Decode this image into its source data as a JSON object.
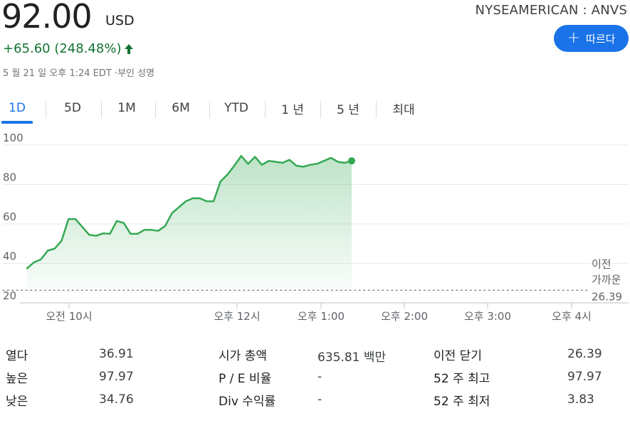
{
  "quote": {
    "price": "92.00",
    "currency": "USD",
    "exchange_ticker": "NYSEAMERICAN : ANVS",
    "change": "+65.60 (248.48%)",
    "timestamp": "5 월 21 일 오후 1:24 EDT ·부인 성명",
    "follow_label": "따르다"
  },
  "tabs": [
    {
      "label": "1D",
      "active": true
    },
    {
      "label": "5D"
    },
    {
      "label": "1M"
    },
    {
      "label": "6M"
    },
    {
      "label": "YTD"
    },
    {
      "label": "1 년"
    },
    {
      "label": "5 년"
    },
    {
      "label": "최대"
    }
  ],
  "colors": {
    "accent": "#1a73e8",
    "positive": "#137333",
    "line": "#34a853"
  },
  "chart_data": {
    "type": "area",
    "ylim": [
      20,
      104
    ],
    "yticks": [
      100,
      80,
      60,
      40,
      20
    ],
    "x_labels": [
      "오전 10시",
      "오후 12시",
      "오후 1:00",
      "오후 2:00",
      "오후 3:00",
      "오후 4시"
    ],
    "previous_close": 26.39,
    "previous_close_label": [
      "이전",
      "가까운"
    ],
    "previous_close_text": "26.39",
    "series": [
      {
        "values": [
          37.5,
          40.5,
          42,
          46.5,
          47.5,
          51.5,
          62.5,
          62.5,
          58.5,
          54.5,
          54,
          55.2,
          55,
          61.5,
          60.5,
          55,
          55,
          57,
          57,
          56.5,
          59,
          65.5,
          68.5,
          71.5,
          73,
          73,
          71.5,
          71.5,
          81.5,
          85,
          89.5,
          94.5,
          90.5,
          94,
          90,
          92,
          91.5,
          91,
          92.5,
          89.5,
          89,
          90,
          90.5,
          92,
          93.5,
          91.5,
          91,
          92
        ]
      }
    ]
  },
  "stats": [
    {
      "label": "열다",
      "value": "36.91"
    },
    {
      "label": "높은",
      "value": "97.97"
    },
    {
      "label": "낮은",
      "value": "34.76"
    },
    {
      "label": "시가 총액",
      "value": "635.81 백만"
    },
    {
      "label": "P / E 비율",
      "value": "-"
    },
    {
      "label": "Div 수익률",
      "value": "-"
    },
    {
      "label": "이전 닫기",
      "value": "26.39"
    },
    {
      "label": "52 주 최고",
      "value": "97.97"
    },
    {
      "label": "52 주 최저",
      "value": "3.83"
    }
  ]
}
